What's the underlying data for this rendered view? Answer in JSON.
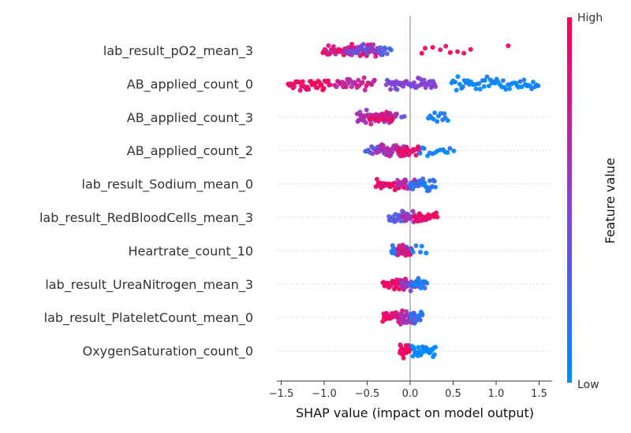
{
  "chart_data": {
    "type": "scatter",
    "subtype": "beeswarm",
    "xlabel": "SHAP value (impact on model output)",
    "x_ticks": [
      -1.5,
      -1.0,
      -0.5,
      0.0,
      0.5,
      1.0,
      1.5
    ],
    "x_tick_labels": [
      "−1.5",
      "−1.0",
      "−0.5",
      "0.0",
      "0.5",
      "1.0",
      "1.5"
    ],
    "xlim": [
      -1.55,
      1.65
    ],
    "colorbar": {
      "title": "Feature value",
      "high_label": "High",
      "low_label": "Low",
      "high_color": "#ff0052",
      "mid_color": "#8b3fd1",
      "low_color": "#008bfb"
    },
    "features": [
      {
        "name": "lab_result_pO2_mean_3",
        "groups": [
          {
            "range": [
              -1.02,
              -0.38
            ],
            "n": 60,
            "value": 0.85
          },
          {
            "range": [
              -0.75,
              -0.28
            ],
            "n": 30,
            "value": 0.45
          },
          {
            "range": [
              -0.35,
              -0.2
            ],
            "n": 6,
            "value": 0.2
          },
          {
            "range": [
              0.1,
              0.75
            ],
            "n": 9,
            "value": 0.97
          },
          {
            "range": [
              1.14,
              1.14
            ],
            "n": 1,
            "value": 1.0
          }
        ]
      },
      {
        "name": "AB_applied_count_0",
        "groups": [
          {
            "range": [
              -1.42,
              -0.92
            ],
            "n": 40,
            "value": 0.95
          },
          {
            "range": [
              -0.88,
              -0.4
            ],
            "n": 30,
            "value": 0.75
          },
          {
            "range": [
              -0.28,
              0.3
            ],
            "n": 50,
            "value": 0.45
          },
          {
            "range": [
              0.48,
              1.5
            ],
            "n": 55,
            "value": 0.05
          }
        ]
      },
      {
        "name": "AB_applied_count_3",
        "groups": [
          {
            "range": [
              -0.62,
              -0.15
            ],
            "n": 55,
            "value": 0.6
          },
          {
            "range": [
              -0.48,
              -0.2
            ],
            "n": 25,
            "value": 0.85
          },
          {
            "range": [
              -0.1,
              -0.05
            ],
            "n": 2,
            "value": 0.3
          },
          {
            "range": [
              0.2,
              0.45
            ],
            "n": 12,
            "value": 0.05
          }
        ]
      },
      {
        "name": "AB_applied_count_2",
        "groups": [
          {
            "range": [
              -0.52,
              -0.25
            ],
            "n": 20,
            "value": 0.35
          },
          {
            "range": [
              -0.4,
              -0.02
            ],
            "n": 35,
            "value": 0.65
          },
          {
            "range": [
              -0.15,
              0.12
            ],
            "n": 25,
            "value": 0.9
          },
          {
            "range": [
              0.1,
              0.52
            ],
            "n": 14,
            "value": 0.05
          }
        ]
      },
      {
        "name": "lab_result_Sodium_mean_0",
        "groups": [
          {
            "range": [
              -0.4,
              -0.05
            ],
            "n": 30,
            "value": 0.9
          },
          {
            "range": [
              -0.15,
              0.1
            ],
            "n": 25,
            "value": 0.6
          },
          {
            "range": [
              0.0,
              0.3
            ],
            "n": 25,
            "value": 0.15
          }
        ]
      },
      {
        "name": "lab_result_RedBloodCells_mean_3",
        "groups": [
          {
            "range": [
              -0.25,
              -0.02
            ],
            "n": 25,
            "value": 0.3
          },
          {
            "range": [
              -0.1,
              0.1
            ],
            "n": 20,
            "value": 0.6
          },
          {
            "range": [
              0.05,
              0.32
            ],
            "n": 25,
            "value": 0.95
          }
        ]
      },
      {
        "name": "Heartrate_count_10",
        "groups": [
          {
            "range": [
              -0.22,
              -0.02
            ],
            "n": 25,
            "value": 0.1
          },
          {
            "range": [
              -0.15,
              0.02
            ],
            "n": 25,
            "value": 0.8
          },
          {
            "range": [
              0.0,
              0.2
            ],
            "n": 6,
            "value": 0.05
          }
        ]
      },
      {
        "name": "lab_result_UreaNitrogen_mean_3",
        "groups": [
          {
            "range": [
              -0.32,
              -0.05
            ],
            "n": 30,
            "value": 0.9
          },
          {
            "range": [
              -0.1,
              0.1
            ],
            "n": 25,
            "value": 0.55
          },
          {
            "range": [
              0.0,
              0.2
            ],
            "n": 18,
            "value": 0.1
          }
        ]
      },
      {
        "name": "lab_result_PlateletCount_mean_0",
        "groups": [
          {
            "range": [
              -0.32,
              -0.08
            ],
            "n": 30,
            "value": 0.9
          },
          {
            "range": [
              -0.12,
              0.05
            ],
            "n": 25,
            "value": 0.6
          },
          {
            "range": [
              0.0,
              0.15
            ],
            "n": 18,
            "value": 0.15
          }
        ]
      },
      {
        "name": "OxygenSaturation_count_0",
        "groups": [
          {
            "range": [
              -0.12,
              0.0
            ],
            "n": 40,
            "value": 0.95
          },
          {
            "range": [
              0.02,
              0.3
            ],
            "n": 30,
            "value": 0.02
          }
        ]
      }
    ]
  }
}
